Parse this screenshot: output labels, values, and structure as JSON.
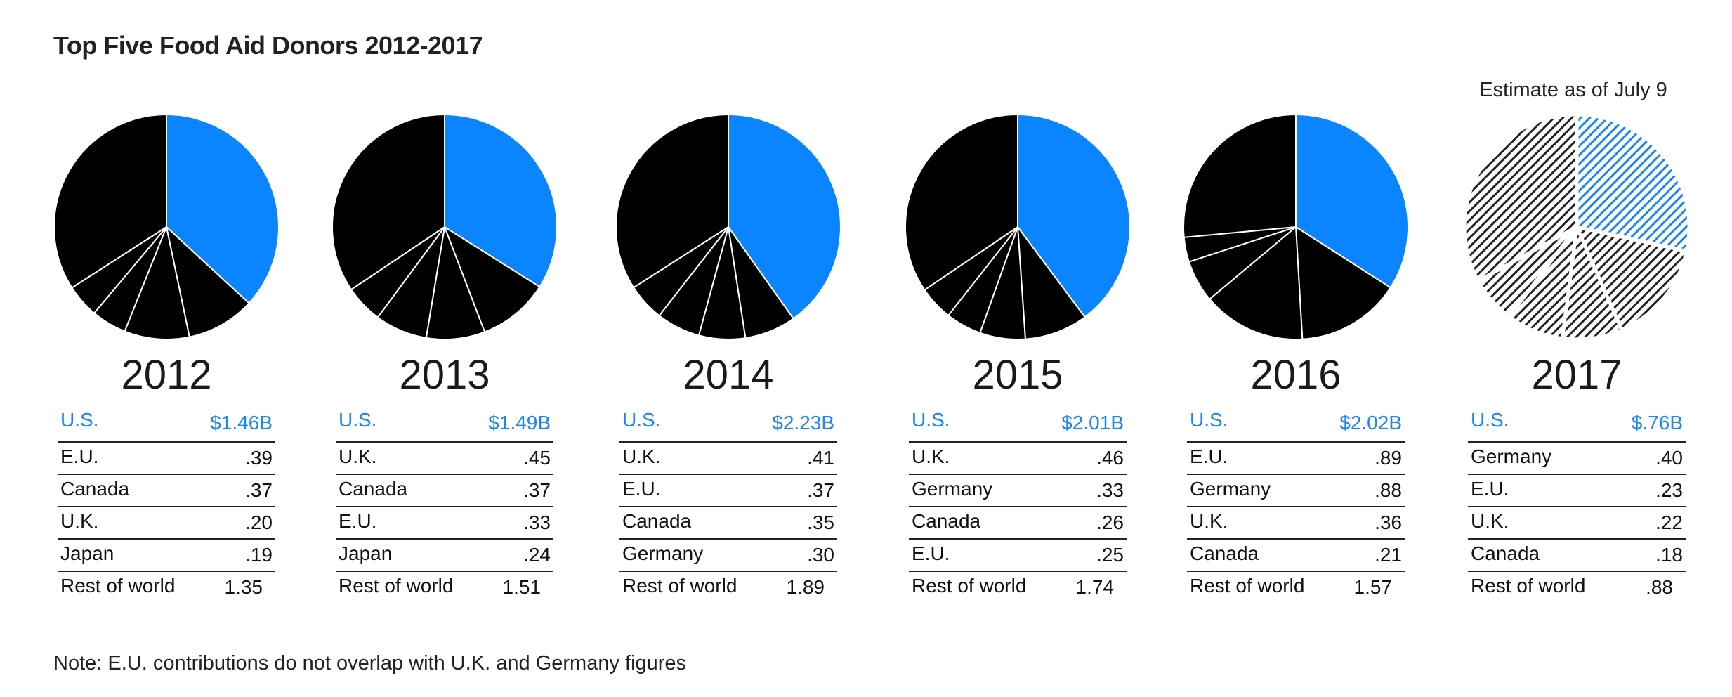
{
  "title": "Top Five Food Aid Donors 2012-2017",
  "note": "Note: E.U. contributions do not overlap with U.K. and Germany figures",
  "estimate_label": "Estimate as of July 9",
  "colors": {
    "us": "#0a85ff",
    "others": "#000000",
    "estimate_us": "#1a85f5",
    "estimate_others": "#222222",
    "separator": "#ffffff"
  },
  "chart_data": [
    {
      "type": "pie",
      "year": "2012",
      "rows": [
        {
          "label": "U.S.",
          "value": "$1.46B"
        },
        {
          "label": "E.U.",
          "value": ".39"
        },
        {
          "label": "Canada",
          "value": ".37"
        },
        {
          "label": "U.K.",
          "value": ".20"
        },
        {
          "label": "Japan",
          "value": ".19"
        },
        {
          "label": "Rest of world",
          "value": "1.35"
        }
      ],
      "values": [
        1.46,
        0.39,
        0.37,
        0.2,
        0.19,
        1.35
      ]
    },
    {
      "type": "pie",
      "year": "2013",
      "rows": [
        {
          "label": "U.S.",
          "value": "$1.49B"
        },
        {
          "label": "U.K.",
          "value": ".45"
        },
        {
          "label": "Canada",
          "value": ".37"
        },
        {
          "label": "E.U.",
          "value": ".33"
        },
        {
          "label": "Japan",
          "value": ".24"
        },
        {
          "label": "Rest of world",
          "value": "1.51"
        }
      ],
      "values": [
        1.49,
        0.45,
        0.37,
        0.33,
        0.24,
        1.51
      ]
    },
    {
      "type": "pie",
      "year": "2014",
      "rows": [
        {
          "label": "U.S.",
          "value": "$2.23B"
        },
        {
          "label": "U.K.",
          "value": ".41"
        },
        {
          "label": "E.U.",
          "value": ".37"
        },
        {
          "label": "Canada",
          "value": ".35"
        },
        {
          "label": "Germany",
          "value": ".30"
        },
        {
          "label": "Rest of world",
          "value": "1.89"
        }
      ],
      "values": [
        2.23,
        0.41,
        0.37,
        0.35,
        0.3,
        1.89
      ]
    },
    {
      "type": "pie",
      "year": "2015",
      "rows": [
        {
          "label": "U.S.",
          "value": "$2.01B"
        },
        {
          "label": "U.K.",
          "value": ".46"
        },
        {
          "label": "Germany",
          "value": ".33"
        },
        {
          "label": "Canada",
          "value": ".26"
        },
        {
          "label": "E.U.",
          "value": ".25"
        },
        {
          "label": "Rest of world",
          "value": "1.74"
        }
      ],
      "values": [
        2.01,
        0.46,
        0.33,
        0.26,
        0.25,
        1.74
      ]
    },
    {
      "type": "pie",
      "year": "2016",
      "rows": [
        {
          "label": "U.S.",
          "value": "$2.02B"
        },
        {
          "label": "E.U.",
          "value": ".89"
        },
        {
          "label": "Germany",
          "value": ".88"
        },
        {
          "label": "U.K.",
          "value": ".36"
        },
        {
          "label": "Canada",
          "value": ".21"
        },
        {
          "label": "Rest of world",
          "value": "1.57"
        }
      ],
      "values": [
        2.02,
        0.89,
        0.88,
        0.36,
        0.21,
        1.57
      ]
    },
    {
      "type": "pie",
      "year": "2017",
      "estimate": true,
      "rows": [
        {
          "label": "U.S.",
          "value": "$.76B"
        },
        {
          "label": "Germany",
          "value": ".40"
        },
        {
          "label": "E.U.",
          "value": ".23"
        },
        {
          "label": "U.K.",
          "value": ".22"
        },
        {
          "label": "Canada",
          "value": ".18"
        },
        {
          "label": "Rest of world",
          "value": ".88"
        }
      ],
      "values": [
        0.76,
        0.4,
        0.23,
        0.22,
        0.18,
        0.88
      ]
    }
  ]
}
